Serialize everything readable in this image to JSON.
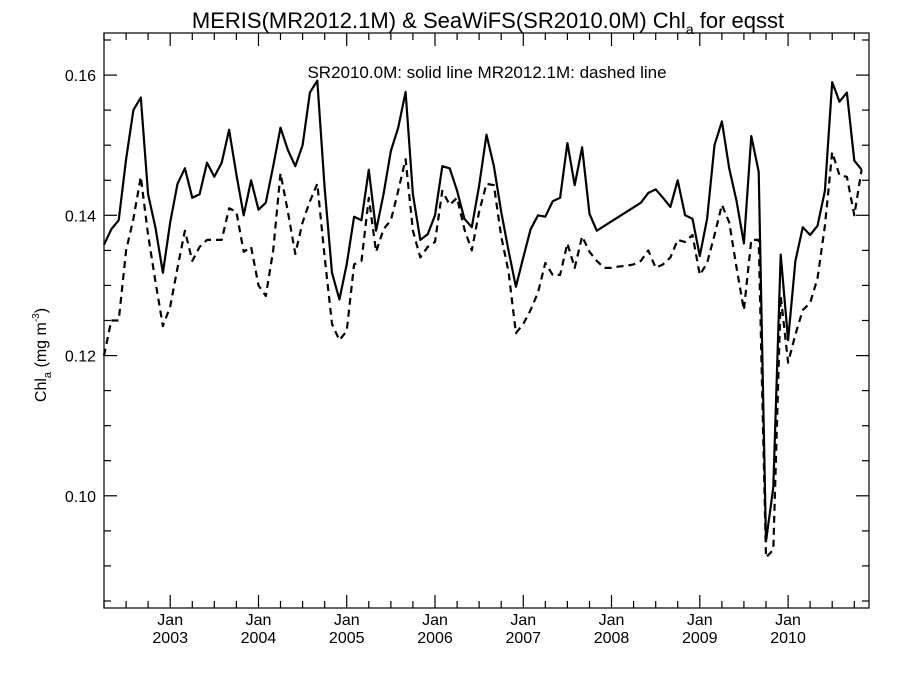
{
  "chart_data": {
    "type": "line",
    "title": {
      "prefix": "MERIS(MR2012.1M) & SeaWiFS(SR2010.0M)  Chl",
      "subscript": "a",
      "suffix": " for eqsst"
    },
    "legend_note": "SR2010.0M: solid line   MR2012.1M: dashed line",
    "ylabel": {
      "main": "Chl",
      "subscript": "a",
      "unit_open": " (mg m",
      "superscript": "-3",
      "unit_close": ")"
    },
    "xlabel": "",
    "xlim": [
      2002.25,
      2010.917
    ],
    "ylim": [
      0.084,
      0.166
    ],
    "yticks": [
      0.1,
      0.12,
      0.14,
      0.16
    ],
    "ytick_labels": [
      "0.10",
      "0.12",
      "0.14",
      "0.16"
    ],
    "xticks": [
      {
        "x": 2003,
        "month": "Jan",
        "year": "2003"
      },
      {
        "x": 2004,
        "month": "Jan",
        "year": "2004"
      },
      {
        "x": 2005,
        "month": "Jan",
        "year": "2005"
      },
      {
        "x": 2006,
        "month": "Jan",
        "year": "2006"
      },
      {
        "x": 2007,
        "month": "Jan",
        "year": "2007"
      },
      {
        "x": 2008,
        "month": "Jan",
        "year": "2008"
      },
      {
        "x": 2009,
        "month": "Jan",
        "year": "2009"
      },
      {
        "x": 2010,
        "month": "Jan",
        "year": "2010"
      }
    ],
    "series": [
      {
        "style": "solid",
        "points": [
          [
            2002.25,
            0.1358
          ],
          [
            2002.333,
            0.138
          ],
          [
            2002.417,
            0.1393
          ],
          [
            2002.5,
            0.148
          ],
          [
            2002.583,
            0.155
          ],
          [
            2002.667,
            0.1568
          ],
          [
            2002.75,
            0.143
          ],
          [
            2002.833,
            0.1382
          ],
          [
            2002.917,
            0.1318
          ],
          [
            2003.0,
            0.139
          ],
          [
            2003.083,
            0.1445
          ],
          [
            2003.167,
            0.1467
          ],
          [
            2003.25,
            0.1425
          ],
          [
            2003.333,
            0.143
          ],
          [
            2003.417,
            0.1475
          ],
          [
            2003.5,
            0.1455
          ],
          [
            2003.583,
            0.1475
          ],
          [
            2003.667,
            0.1522
          ],
          [
            2003.75,
            0.1458
          ],
          [
            2003.833,
            0.14
          ],
          [
            2003.917,
            0.145
          ],
          [
            2004.0,
            0.1408
          ],
          [
            2004.083,
            0.1418
          ],
          [
            2004.167,
            0.147
          ],
          [
            2004.25,
            0.1525
          ],
          [
            2004.333,
            0.1493
          ],
          [
            2004.417,
            0.147
          ],
          [
            2004.5,
            0.15
          ],
          [
            2004.583,
            0.1575
          ],
          [
            2004.667,
            0.1592
          ],
          [
            2004.75,
            0.1438
          ],
          [
            2004.833,
            0.1318
          ],
          [
            2004.917,
            0.128
          ],
          [
            2005.0,
            0.133
          ],
          [
            2005.083,
            0.1398
          ],
          [
            2005.167,
            0.1393
          ],
          [
            2005.25,
            0.1465
          ],
          [
            2005.333,
            0.1378
          ],
          [
            2005.417,
            0.143
          ],
          [
            2005.5,
            0.1492
          ],
          [
            2005.583,
            0.1525
          ],
          [
            2005.667,
            0.1576
          ],
          [
            2005.75,
            0.143
          ],
          [
            2005.833,
            0.1365
          ],
          [
            2005.917,
            0.1373
          ],
          [
            2006.0,
            0.14
          ],
          [
            2006.083,
            0.147
          ],
          [
            2006.167,
            0.1467
          ],
          [
            2006.25,
            0.1435
          ],
          [
            2006.333,
            0.1395
          ],
          [
            2006.417,
            0.1383
          ],
          [
            2006.5,
            0.1442
          ],
          [
            2006.583,
            0.1515
          ],
          [
            2006.667,
            0.147
          ],
          [
            2006.75,
            0.1405
          ],
          [
            2006.833,
            0.135
          ],
          [
            2006.917,
            0.1298
          ],
          [
            2007.0,
            0.134
          ],
          [
            2007.083,
            0.138
          ],
          [
            2007.167,
            0.14
          ],
          [
            2007.25,
            0.1398
          ],
          [
            2007.333,
            0.142
          ],
          [
            2007.417,
            0.1425
          ],
          [
            2007.5,
            0.1503
          ],
          [
            2007.583,
            0.1443
          ],
          [
            2007.667,
            0.1497
          ],
          [
            2007.75,
            0.1402
          ],
          [
            2007.833,
            0.1378
          ],
          [
            2008.333,
            0.1418
          ],
          [
            2008.417,
            0.1432
          ],
          [
            2008.5,
            0.1437
          ],
          [
            2008.583,
            0.1425
          ],
          [
            2008.667,
            0.1412
          ],
          [
            2008.75,
            0.145
          ],
          [
            2008.833,
            0.14
          ],
          [
            2008.917,
            0.1395
          ],
          [
            2009.0,
            0.1342
          ],
          [
            2009.083,
            0.1395
          ],
          [
            2009.167,
            0.15
          ],
          [
            2009.25,
            0.1534
          ],
          [
            2009.333,
            0.1467
          ],
          [
            2009.417,
            0.142
          ],
          [
            2009.5,
            0.136
          ],
          [
            2009.583,
            0.1513
          ],
          [
            2009.667,
            0.1462
          ],
          [
            2009.75,
            0.0935
          ],
          [
            2009.833,
            0.1012
          ],
          [
            2009.917,
            0.1344
          ],
          [
            2010.0,
            0.1222
          ],
          [
            2010.083,
            0.1335
          ],
          [
            2010.167,
            0.1383
          ],
          [
            2010.25,
            0.1372
          ],
          [
            2010.333,
            0.1385
          ],
          [
            2010.417,
            0.1435
          ],
          [
            2010.5,
            0.159
          ],
          [
            2010.583,
            0.1562
          ],
          [
            2010.667,
            0.1575
          ],
          [
            2010.75,
            0.1478
          ],
          [
            2010.833,
            0.1465
          ]
        ]
      },
      {
        "style": "dashed",
        "points": [
          [
            2002.25,
            0.12
          ],
          [
            2002.333,
            0.125
          ],
          [
            2002.417,
            0.125
          ],
          [
            2002.5,
            0.135
          ],
          [
            2002.583,
            0.1395
          ],
          [
            2002.667,
            0.1455
          ],
          [
            2002.75,
            0.1372
          ],
          [
            2002.833,
            0.1305
          ],
          [
            2002.917,
            0.1242
          ],
          [
            2003.0,
            0.127
          ],
          [
            2003.083,
            0.1325
          ],
          [
            2003.167,
            0.1378
          ],
          [
            2003.25,
            0.1335
          ],
          [
            2003.333,
            0.1355
          ],
          [
            2003.417,
            0.1365
          ],
          [
            2003.5,
            0.1365
          ],
          [
            2003.583,
            0.1365
          ],
          [
            2003.667,
            0.141
          ],
          [
            2003.75,
            0.1405
          ],
          [
            2003.833,
            0.1348
          ],
          [
            2003.917,
            0.1355
          ],
          [
            2004.0,
            0.13
          ],
          [
            2004.083,
            0.1285
          ],
          [
            2004.167,
            0.135
          ],
          [
            2004.25,
            0.146
          ],
          [
            2004.333,
            0.1405
          ],
          [
            2004.417,
            0.1345
          ],
          [
            2004.5,
            0.139
          ],
          [
            2004.583,
            0.142
          ],
          [
            2004.667,
            0.1445
          ],
          [
            2004.75,
            0.134
          ],
          [
            2004.833,
            0.1245
          ],
          [
            2004.917,
            0.1222
          ],
          [
            2005.0,
            0.1235
          ],
          [
            2005.083,
            0.133
          ],
          [
            2005.167,
            0.1335
          ],
          [
            2005.25,
            0.1425
          ],
          [
            2005.333,
            0.1348
          ],
          [
            2005.417,
            0.138
          ],
          [
            2005.5,
            0.1393
          ],
          [
            2005.583,
            0.1435
          ],
          [
            2005.667,
            0.148
          ],
          [
            2005.75,
            0.1378
          ],
          [
            2005.833,
            0.134
          ],
          [
            2005.917,
            0.1355
          ],
          [
            2006.0,
            0.1362
          ],
          [
            2006.083,
            0.1435
          ],
          [
            2006.167,
            0.1415
          ],
          [
            2006.25,
            0.1425
          ],
          [
            2006.333,
            0.138
          ],
          [
            2006.417,
            0.135
          ],
          [
            2006.5,
            0.1405
          ],
          [
            2006.583,
            0.1445
          ],
          [
            2006.667,
            0.1443
          ],
          [
            2006.75,
            0.137
          ],
          [
            2006.833,
            0.132
          ],
          [
            2006.917,
            0.1232
          ],
          [
            2007.0,
            0.1245
          ],
          [
            2007.083,
            0.1265
          ],
          [
            2007.167,
            0.129
          ],
          [
            2007.25,
            0.1332
          ],
          [
            2007.333,
            0.1315
          ],
          [
            2007.417,
            0.1315
          ],
          [
            2007.5,
            0.136
          ],
          [
            2007.583,
            0.1325
          ],
          [
            2007.667,
            0.137
          ],
          [
            2007.75,
            0.1348
          ],
          [
            2007.833,
            0.1335
          ],
          [
            2007.917,
            0.1325
          ],
          [
            2008.0,
            0.1325
          ],
          [
            2008.083,
            0.1327
          ],
          [
            2008.167,
            0.1328
          ],
          [
            2008.25,
            0.133
          ],
          [
            2008.333,
            0.1335
          ],
          [
            2008.417,
            0.135
          ],
          [
            2008.5,
            0.1325
          ],
          [
            2008.583,
            0.133
          ],
          [
            2008.667,
            0.134
          ],
          [
            2008.75,
            0.1365
          ],
          [
            2008.833,
            0.1362
          ],
          [
            2008.917,
            0.1372
          ],
          [
            2009.0,
            0.1315
          ],
          [
            2009.083,
            0.1332
          ],
          [
            2009.167,
            0.1372
          ],
          [
            2009.25,
            0.1415
          ],
          [
            2009.333,
            0.139
          ],
          [
            2009.417,
            0.1325
          ],
          [
            2009.5,
            0.1265
          ],
          [
            2009.583,
            0.1365
          ],
          [
            2009.667,
            0.1365
          ],
          [
            2009.75,
            0.0912
          ],
          [
            2009.833,
            0.0923
          ],
          [
            2009.917,
            0.1285
          ],
          [
            2010.0,
            0.119
          ],
          [
            2010.083,
            0.123
          ],
          [
            2010.167,
            0.1265
          ],
          [
            2010.25,
            0.1275
          ],
          [
            2010.333,
            0.131
          ],
          [
            2010.417,
            0.1385
          ],
          [
            2010.5,
            0.149
          ],
          [
            2010.583,
            0.1457
          ],
          [
            2010.667,
            0.1455
          ],
          [
            2010.75,
            0.14
          ],
          [
            2010.833,
            0.1465
          ]
        ]
      }
    ]
  }
}
